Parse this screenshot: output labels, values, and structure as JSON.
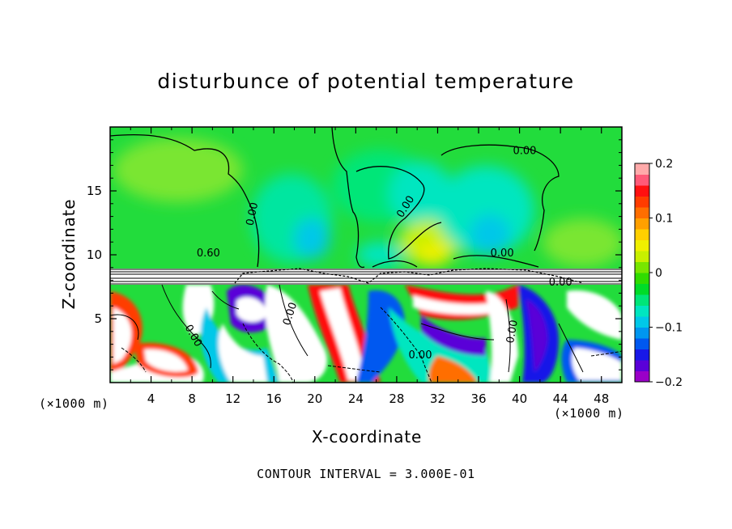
{
  "chart_data": {
    "type": "heatmap",
    "title": "disturbunce of potential temperature",
    "xlabel": "X-coordinate",
    "ylabel": "Z-coordinate",
    "x_unit_label": "(×1000 m)",
    "xlim": [
      0,
      50
    ],
    "ylim": [
      0,
      20
    ],
    "x_ticks": [
      4,
      8,
      12,
      16,
      20,
      24,
      28,
      32,
      36,
      40,
      44,
      48
    ],
    "y_ticks": [
      5,
      10,
      15
    ],
    "colorbar": {
      "range": [
        -0.2,
        0.2
      ],
      "tick_labels": [
        "0.2",
        "0.1",
        "0",
        "−0.1",
        "−0.2"
      ],
      "tick_values": [
        0.2,
        0.1,
        0,
        -0.1,
        -0.2
      ],
      "colors": [
        "#9a00c8",
        "#5a00d8",
        "#1818e8",
        "#0058f0",
        "#0096f0",
        "#00c8e8",
        "#00e6c0",
        "#00e678",
        "#00dc28",
        "#30dc00",
        "#78e600",
        "#c8f000",
        "#f0f000",
        "#ffd000",
        "#ffa000",
        "#ff6e00",
        "#ff3c00",
        "#ff1010",
        "#ff5a78",
        "#ffaaaa"
      ]
    },
    "contour_labels": [
      "0.00",
      "0.00",
      "0.00",
      "0.00",
      "0.60",
      "0.00",
      "0.00",
      "0.00",
      "0.00",
      "0.00"
    ],
    "contour_interval_text": "CONTOUR INTERVAL = 3.000E-01"
  }
}
